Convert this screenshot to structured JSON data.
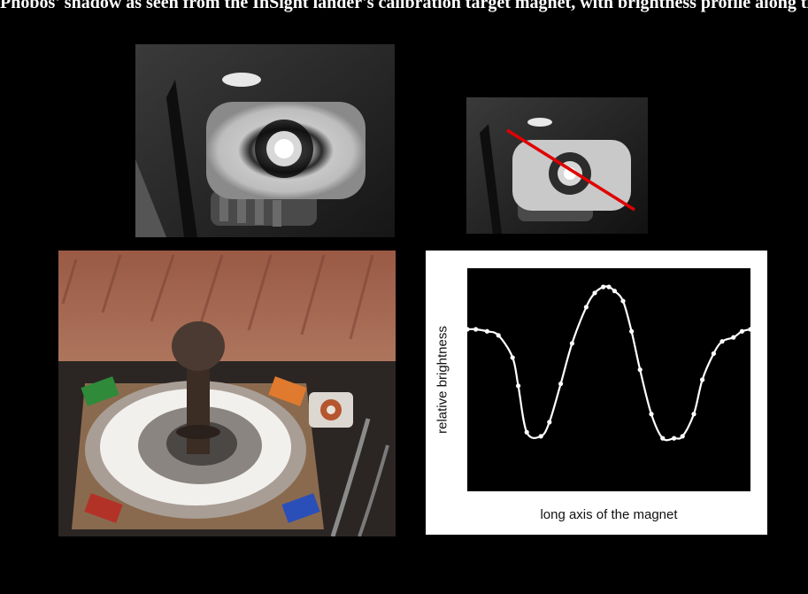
{
  "caption": "Phobos' shadow as seen from the InSight lander's calibration target magnet, with brightness profile along the long axis of the magnet",
  "panels": {
    "magnet_closeup": {
      "kind": "grayscale image"
    },
    "magnet_profile_line": {
      "kind": "grayscale image with red line",
      "line_color": "#e00000"
    },
    "calibration_target": {
      "kind": "color image"
    }
  },
  "chart_data": {
    "type": "line",
    "xlabel": "long axis of the magnet",
    "ylabel": "relative brightness",
    "grid": false,
    "legend": "none",
    "line_color": "#ffffff",
    "background": "#000000",
    "ylim": [
      0,
      1
    ],
    "xlim": [
      0,
      1
    ],
    "series": [
      {
        "x": [
          0.0,
          0.03,
          0.07,
          0.11,
          0.16,
          0.18,
          0.21,
          0.26,
          0.29,
          0.33,
          0.37,
          0.42,
          0.45,
          0.48,
          0.5,
          0.52,
          0.55,
          0.58,
          0.61,
          0.65,
          0.69,
          0.73,
          0.76,
          0.8,
          0.83,
          0.87,
          0.9,
          0.94,
          0.97,
          1.0
        ],
        "y": [
          0.75,
          0.75,
          0.74,
          0.72,
          0.61,
          0.47,
          0.24,
          0.22,
          0.29,
          0.48,
          0.68,
          0.86,
          0.93,
          0.96,
          0.96,
          0.94,
          0.89,
          0.74,
          0.55,
          0.33,
          0.21,
          0.21,
          0.22,
          0.33,
          0.5,
          0.63,
          0.69,
          0.71,
          0.74,
          0.75
        ]
      }
    ]
  }
}
